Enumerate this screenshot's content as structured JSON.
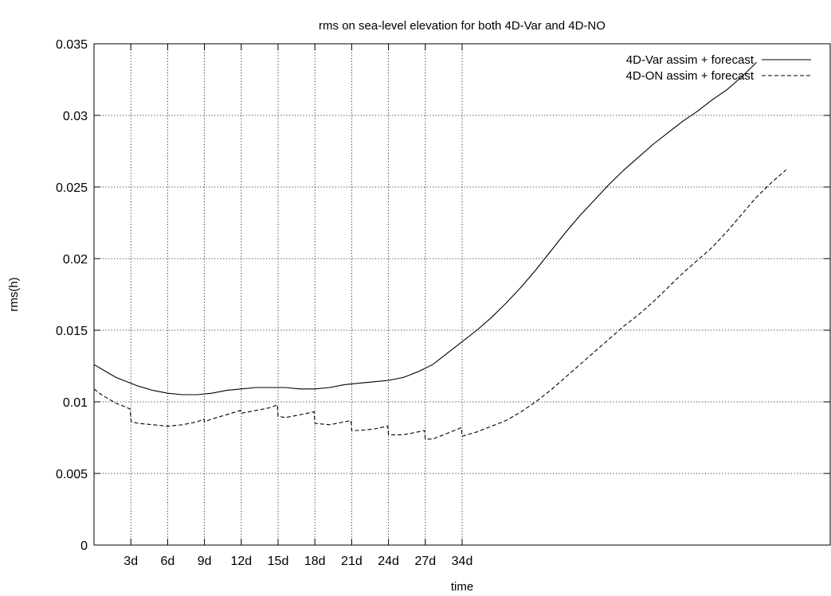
{
  "chart_data": {
    "type": "line",
    "title": "rms on sea-level elevation for both 4D-Var and 4D-NO",
    "xlabel": "time",
    "ylabel": "rms(h)",
    "xlim": [
      0,
      50
    ],
    "ylim": [
      0,
      0.035
    ],
    "grid": true,
    "legend_position": "top-right",
    "x_ticks": [
      {
        "x": 2.5,
        "label": "3d"
      },
      {
        "x": 5,
        "label": "6d"
      },
      {
        "x": 7.5,
        "label": "9d"
      },
      {
        "x": 10,
        "label": "12d"
      },
      {
        "x": 12.5,
        "label": "15d"
      },
      {
        "x": 15,
        "label": "18d"
      },
      {
        "x": 17.5,
        "label": "21d"
      },
      {
        "x": 20,
        "label": "24d"
      },
      {
        "x": 22.5,
        "label": "27d"
      },
      {
        "x": 25,
        "label": "34d"
      }
    ],
    "y_ticks": [
      {
        "y": 0,
        "label": "0"
      },
      {
        "y": 0.005,
        "label": "0.005"
      },
      {
        "y": 0.01,
        "label": "0.01"
      },
      {
        "y": 0.015,
        "label": "0.015"
      },
      {
        "y": 0.02,
        "label": "0.02"
      },
      {
        "y": 0.025,
        "label": "0.025"
      },
      {
        "y": 0.03,
        "label": "0.03"
      },
      {
        "y": 0.035,
        "label": "0.035"
      }
    ],
    "series": [
      {
        "name": "4D-Var assim + forecast",
        "style": "solid",
        "color": "#000000",
        "points": [
          [
            0,
            0.0126
          ],
          [
            0.5,
            0.0123
          ],
          [
            1,
            0.012
          ],
          [
            1.5,
            0.0117
          ],
          [
            2,
            0.0115
          ],
          [
            2.5,
            0.0113
          ],
          [
            3,
            0.0111
          ],
          [
            4,
            0.0108
          ],
          [
            5,
            0.0106
          ],
          [
            6,
            0.0105
          ],
          [
            7,
            0.0105
          ],
          [
            8,
            0.0106
          ],
          [
            9,
            0.0108
          ],
          [
            10,
            0.0109
          ],
          [
            11,
            0.011
          ],
          [
            12,
            0.011
          ],
          [
            13,
            0.011
          ],
          [
            14,
            0.0109
          ],
          [
            15,
            0.0109
          ],
          [
            16,
            0.011
          ],
          [
            17,
            0.0112
          ],
          [
            18,
            0.0113
          ],
          [
            19,
            0.0114
          ],
          [
            20,
            0.0115
          ],
          [
            21,
            0.0117
          ],
          [
            22,
            0.0121
          ],
          [
            23,
            0.0126
          ],
          [
            24,
            0.0134
          ],
          [
            25,
            0.0142
          ],
          [
            26,
            0.015
          ],
          [
            27,
            0.0159
          ],
          [
            28,
            0.0169
          ],
          [
            29,
            0.018
          ],
          [
            30,
            0.0192
          ],
          [
            31,
            0.0205
          ],
          [
            32,
            0.0218
          ],
          [
            33,
            0.023
          ],
          [
            34,
            0.0241
          ],
          [
            35,
            0.0252
          ],
          [
            36,
            0.0262
          ],
          [
            37,
            0.0271
          ],
          [
            38,
            0.028
          ],
          [
            39,
            0.0288
          ],
          [
            40,
            0.0296
          ],
          [
            41,
            0.0303
          ],
          [
            42,
            0.0311
          ],
          [
            43,
            0.0318
          ],
          [
            44,
            0.0327
          ],
          [
            45,
            0.0337
          ]
        ]
      },
      {
        "name": "4D-ON assim + forecast",
        "style": "dashed",
        "color": "#000000",
        "points": [
          [
            0,
            0.0109
          ],
          [
            0.5,
            0.0105
          ],
          [
            1,
            0.0102
          ],
          [
            1.5,
            0.0099
          ],
          [
            2,
            0.0097
          ],
          [
            2.45,
            0.0095
          ],
          [
            2.5,
            0.0088
          ],
          [
            2.55,
            0.0086
          ],
          [
            3,
            0.0085
          ],
          [
            4,
            0.0084
          ],
          [
            5,
            0.0083
          ],
          [
            6,
            0.0084
          ],
          [
            7,
            0.0086
          ],
          [
            7.45,
            0.0088
          ],
          [
            7.5,
            0.0086
          ],
          [
            8,
            0.0088
          ],
          [
            9,
            0.0091
          ],
          [
            9.95,
            0.0094
          ],
          [
            10,
            0.0092
          ],
          [
            11,
            0.0094
          ],
          [
            12,
            0.0096
          ],
          [
            12.45,
            0.0098
          ],
          [
            12.5,
            0.009
          ],
          [
            13,
            0.0089
          ],
          [
            14,
            0.0091
          ],
          [
            14.95,
            0.0093
          ],
          [
            15,
            0.0085
          ],
          [
            16,
            0.0084
          ],
          [
            17,
            0.0086
          ],
          [
            17.45,
            0.0087
          ],
          [
            17.5,
            0.008
          ],
          [
            18,
            0.008
          ],
          [
            19,
            0.0081
          ],
          [
            19.95,
            0.0083
          ],
          [
            20,
            0.0077
          ],
          [
            21,
            0.0077
          ],
          [
            22,
            0.0079
          ],
          [
            22.45,
            0.008
          ],
          [
            22.5,
            0.0074
          ],
          [
            23,
            0.0074
          ],
          [
            24,
            0.0078
          ],
          [
            24.95,
            0.0082
          ],
          [
            25,
            0.0076
          ],
          [
            26,
            0.0079
          ],
          [
            27,
            0.0083
          ],
          [
            28,
            0.0087
          ],
          [
            29,
            0.0093
          ],
          [
            30,
            0.01
          ],
          [
            31,
            0.0108
          ],
          [
            32,
            0.0117
          ],
          [
            33,
            0.0126
          ],
          [
            34,
            0.0135
          ],
          [
            35,
            0.0144
          ],
          [
            36,
            0.0153
          ],
          [
            37,
            0.0161
          ],
          [
            38,
            0.017
          ],
          [
            39,
            0.018
          ],
          [
            40,
            0.019
          ],
          [
            41,
            0.0199
          ],
          [
            42,
            0.0208
          ],
          [
            43,
            0.0219
          ],
          [
            44,
            0.0231
          ],
          [
            45,
            0.0243
          ],
          [
            46,
            0.0253
          ],
          [
            47,
            0.0262
          ]
        ]
      }
    ]
  }
}
